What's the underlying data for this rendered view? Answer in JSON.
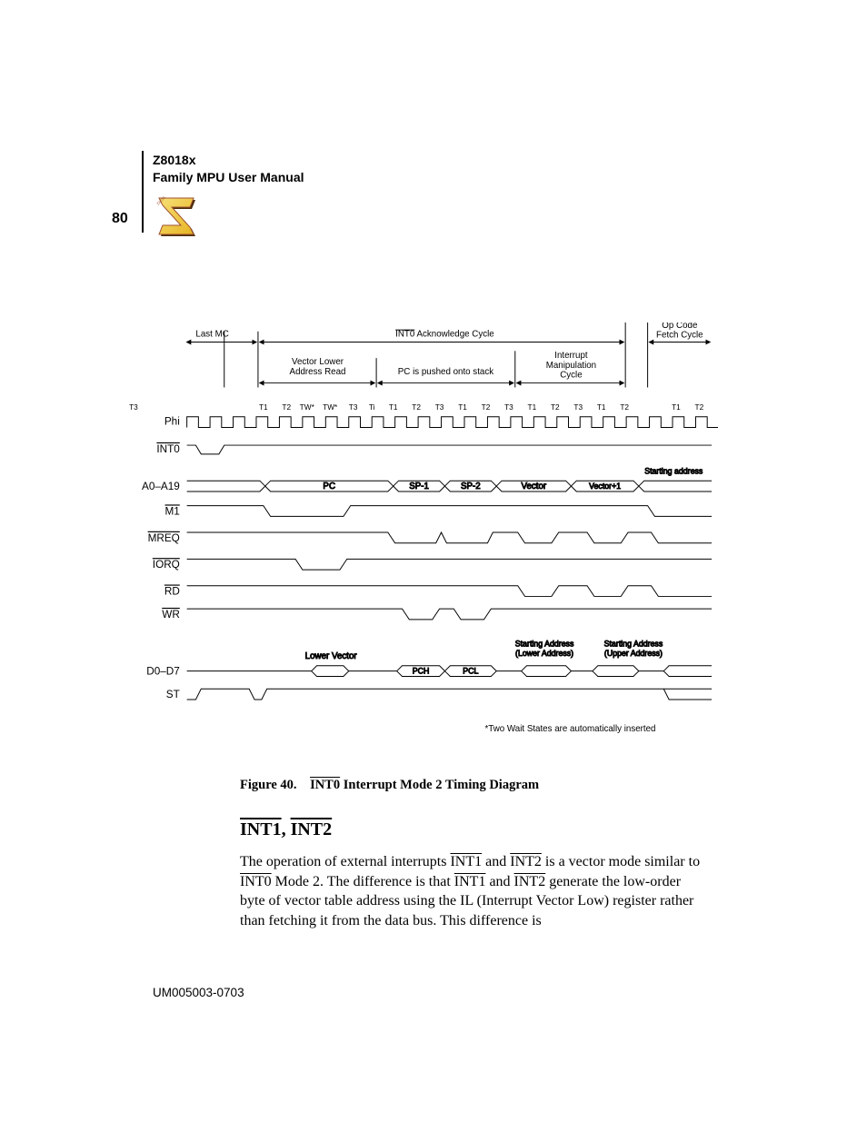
{
  "colors": {
    "page_bg": "#ffffff",
    "text": "#000000",
    "stroke": "#000000",
    "logo_fill": "#f4d03f",
    "logo_outline": "#a0522d",
    "logo_shadow": "#4a2a0a"
  },
  "typography": {
    "body_family": "Times New Roman",
    "label_family": "Arial",
    "header_size_pt": 11,
    "page_number_size_pt": 12,
    "caption_size_pt": 11,
    "heading_size_pt": 15,
    "body_size_pt": 12,
    "diagram_label_size_pt": 8,
    "diagram_signal_size_pt": 9,
    "footnote_size_pt": 8
  },
  "header": {
    "line1": "Z8018x",
    "line2": "Family MPU User Manual"
  },
  "page_number": "80",
  "doc_id": "UM005003-0703",
  "figure": {
    "number": "Figure 40.",
    "title": "INT0 Interrupt Mode 2 Timing Diagram",
    "title_overline_word": "INT0"
  },
  "section": {
    "heading_parts": [
      "INT1",
      ", ",
      "INT2"
    ]
  },
  "body_paragraph": {
    "runs": [
      {
        "t": "The operation of external interrupts "
      },
      {
        "t": "INT1",
        "ov": true
      },
      {
        "t": " and "
      },
      {
        "t": "INT2",
        "ov": true
      },
      {
        "t": " is a vector mode similar to "
      },
      {
        "t": "INT0",
        "ov": true
      },
      {
        "t": " Mode 2. The difference is that "
      },
      {
        "t": "INT1",
        "ov": true
      },
      {
        "t": " and "
      },
      {
        "t": "INT2",
        "ov": true
      },
      {
        "t": " generate the low-order byte of vector table address using the IL (Interrupt Vector Low) register rather than fetching it from the data bus. This difference is"
      }
    ]
  },
  "timing_diagram": {
    "type": "timing-diagram",
    "stroke_color": "#000000",
    "stroke_width": 1,
    "label_font": "Arial",
    "background": "#ffffff",
    "top_labels": {
      "last_mc": "Last MC",
      "int0_ack": "INT0 Acknowledge Cycle",
      "int0_ack_overline_word": "INT0",
      "opcode_fetch": [
        "Op Code",
        "Fetch Cycle"
      ],
      "vector_lower": [
        "Vector Lower",
        "Address Read"
      ],
      "pc_pushed": "PC is pushed onto stack",
      "int_manip": [
        "Interrupt",
        "Manipulation",
        "Cycle"
      ]
    },
    "tstate_labels": [
      "T1",
      "T2",
      "TW*",
      "TW*",
      "T3",
      "Ti",
      "T1",
      "T2",
      "T3",
      "T1",
      "T2",
      "T3",
      "T1",
      "T2",
      "T3",
      "T1",
      "T2",
      "",
      "T1",
      "T2",
      "T3"
    ],
    "signals": [
      {
        "name": "Phi",
        "overline": false
      },
      {
        "name": "INT0",
        "overline": true
      },
      {
        "name": "A0–A19",
        "overline": false
      },
      {
        "name": "M1",
        "overline": true
      },
      {
        "name": "MREQ",
        "overline": true
      },
      {
        "name": "IORQ",
        "overline": true
      },
      {
        "name": "RD",
        "overline": true
      },
      {
        "name": "WR",
        "overline": true
      },
      {
        "name": "D0–D7",
        "overline": false
      },
      {
        "name": "ST",
        "overline": false
      }
    ],
    "bus_labels": {
      "a0_a19": [
        "PC",
        "SP-1",
        "SP-2",
        "Vector",
        "Vector+1"
      ],
      "starting_address": "Starting address",
      "d0_d7": [
        "PCH",
        "PCL"
      ],
      "lower_vector": "Lower Vector",
      "start_addr_lower": [
        "Starting Address",
        "(Lower Address)"
      ],
      "start_addr_upper": [
        "Starting Address",
        "(Upper Address)"
      ]
    },
    "footnote": "*Two Wait States are automatically inserted"
  }
}
